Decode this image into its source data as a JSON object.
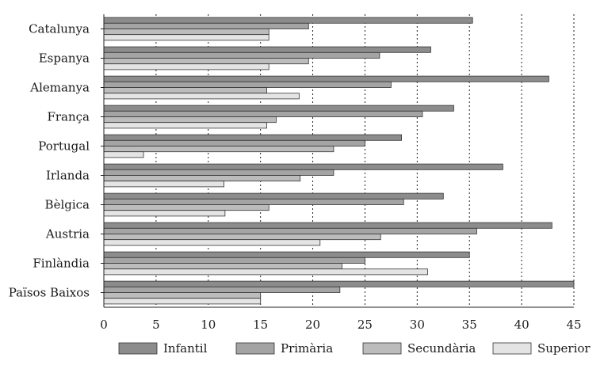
{
  "chart_data": {
    "type": "bar",
    "orientation": "horizontal",
    "categories": [
      "Catalunya",
      "Espanya",
      "Alemanya",
      "França",
      "Portugal",
      "Irlanda",
      "Bèlgica",
      "Austria",
      "Finlàndia",
      "Països Baixos"
    ],
    "series": [
      {
        "name": "Infantil",
        "values": [
          35.3,
          31.3,
          42.6,
          33.5,
          28.5,
          38.2,
          32.5,
          42.9,
          35.0,
          45.0
        ]
      },
      {
        "name": "Primària",
        "values": [
          19.6,
          26.4,
          27.5,
          30.5,
          25.0,
          22.0,
          28.7,
          35.7,
          25.0,
          22.6
        ]
      },
      {
        "name": "Secundària",
        "values": [
          15.8,
          19.6,
          15.6,
          16.5,
          22.0,
          18.8,
          15.8,
          26.5,
          22.8,
          15.0
        ]
      },
      {
        "name": "Superior",
        "values": [
          15.8,
          15.8,
          18.7,
          15.6,
          3.8,
          11.5,
          11.6,
          20.7,
          31.0,
          15.0
        ]
      }
    ],
    "xlim": [
      0,
      45
    ],
    "x_ticks": [
      "0",
      "5",
      "10",
      "15",
      "20",
      "25",
      "30",
      "35",
      "40",
      "45"
    ],
    "title": "",
    "xlabel": "",
    "ylabel": "",
    "grid": true,
    "legend": "bottom",
    "colors": {
      "Infantil": "#8c8c8c",
      "Primària": "#a4a4a4",
      "Secundària": "#bcbcbc",
      "Superior": "#e4e4e4"
    }
  }
}
